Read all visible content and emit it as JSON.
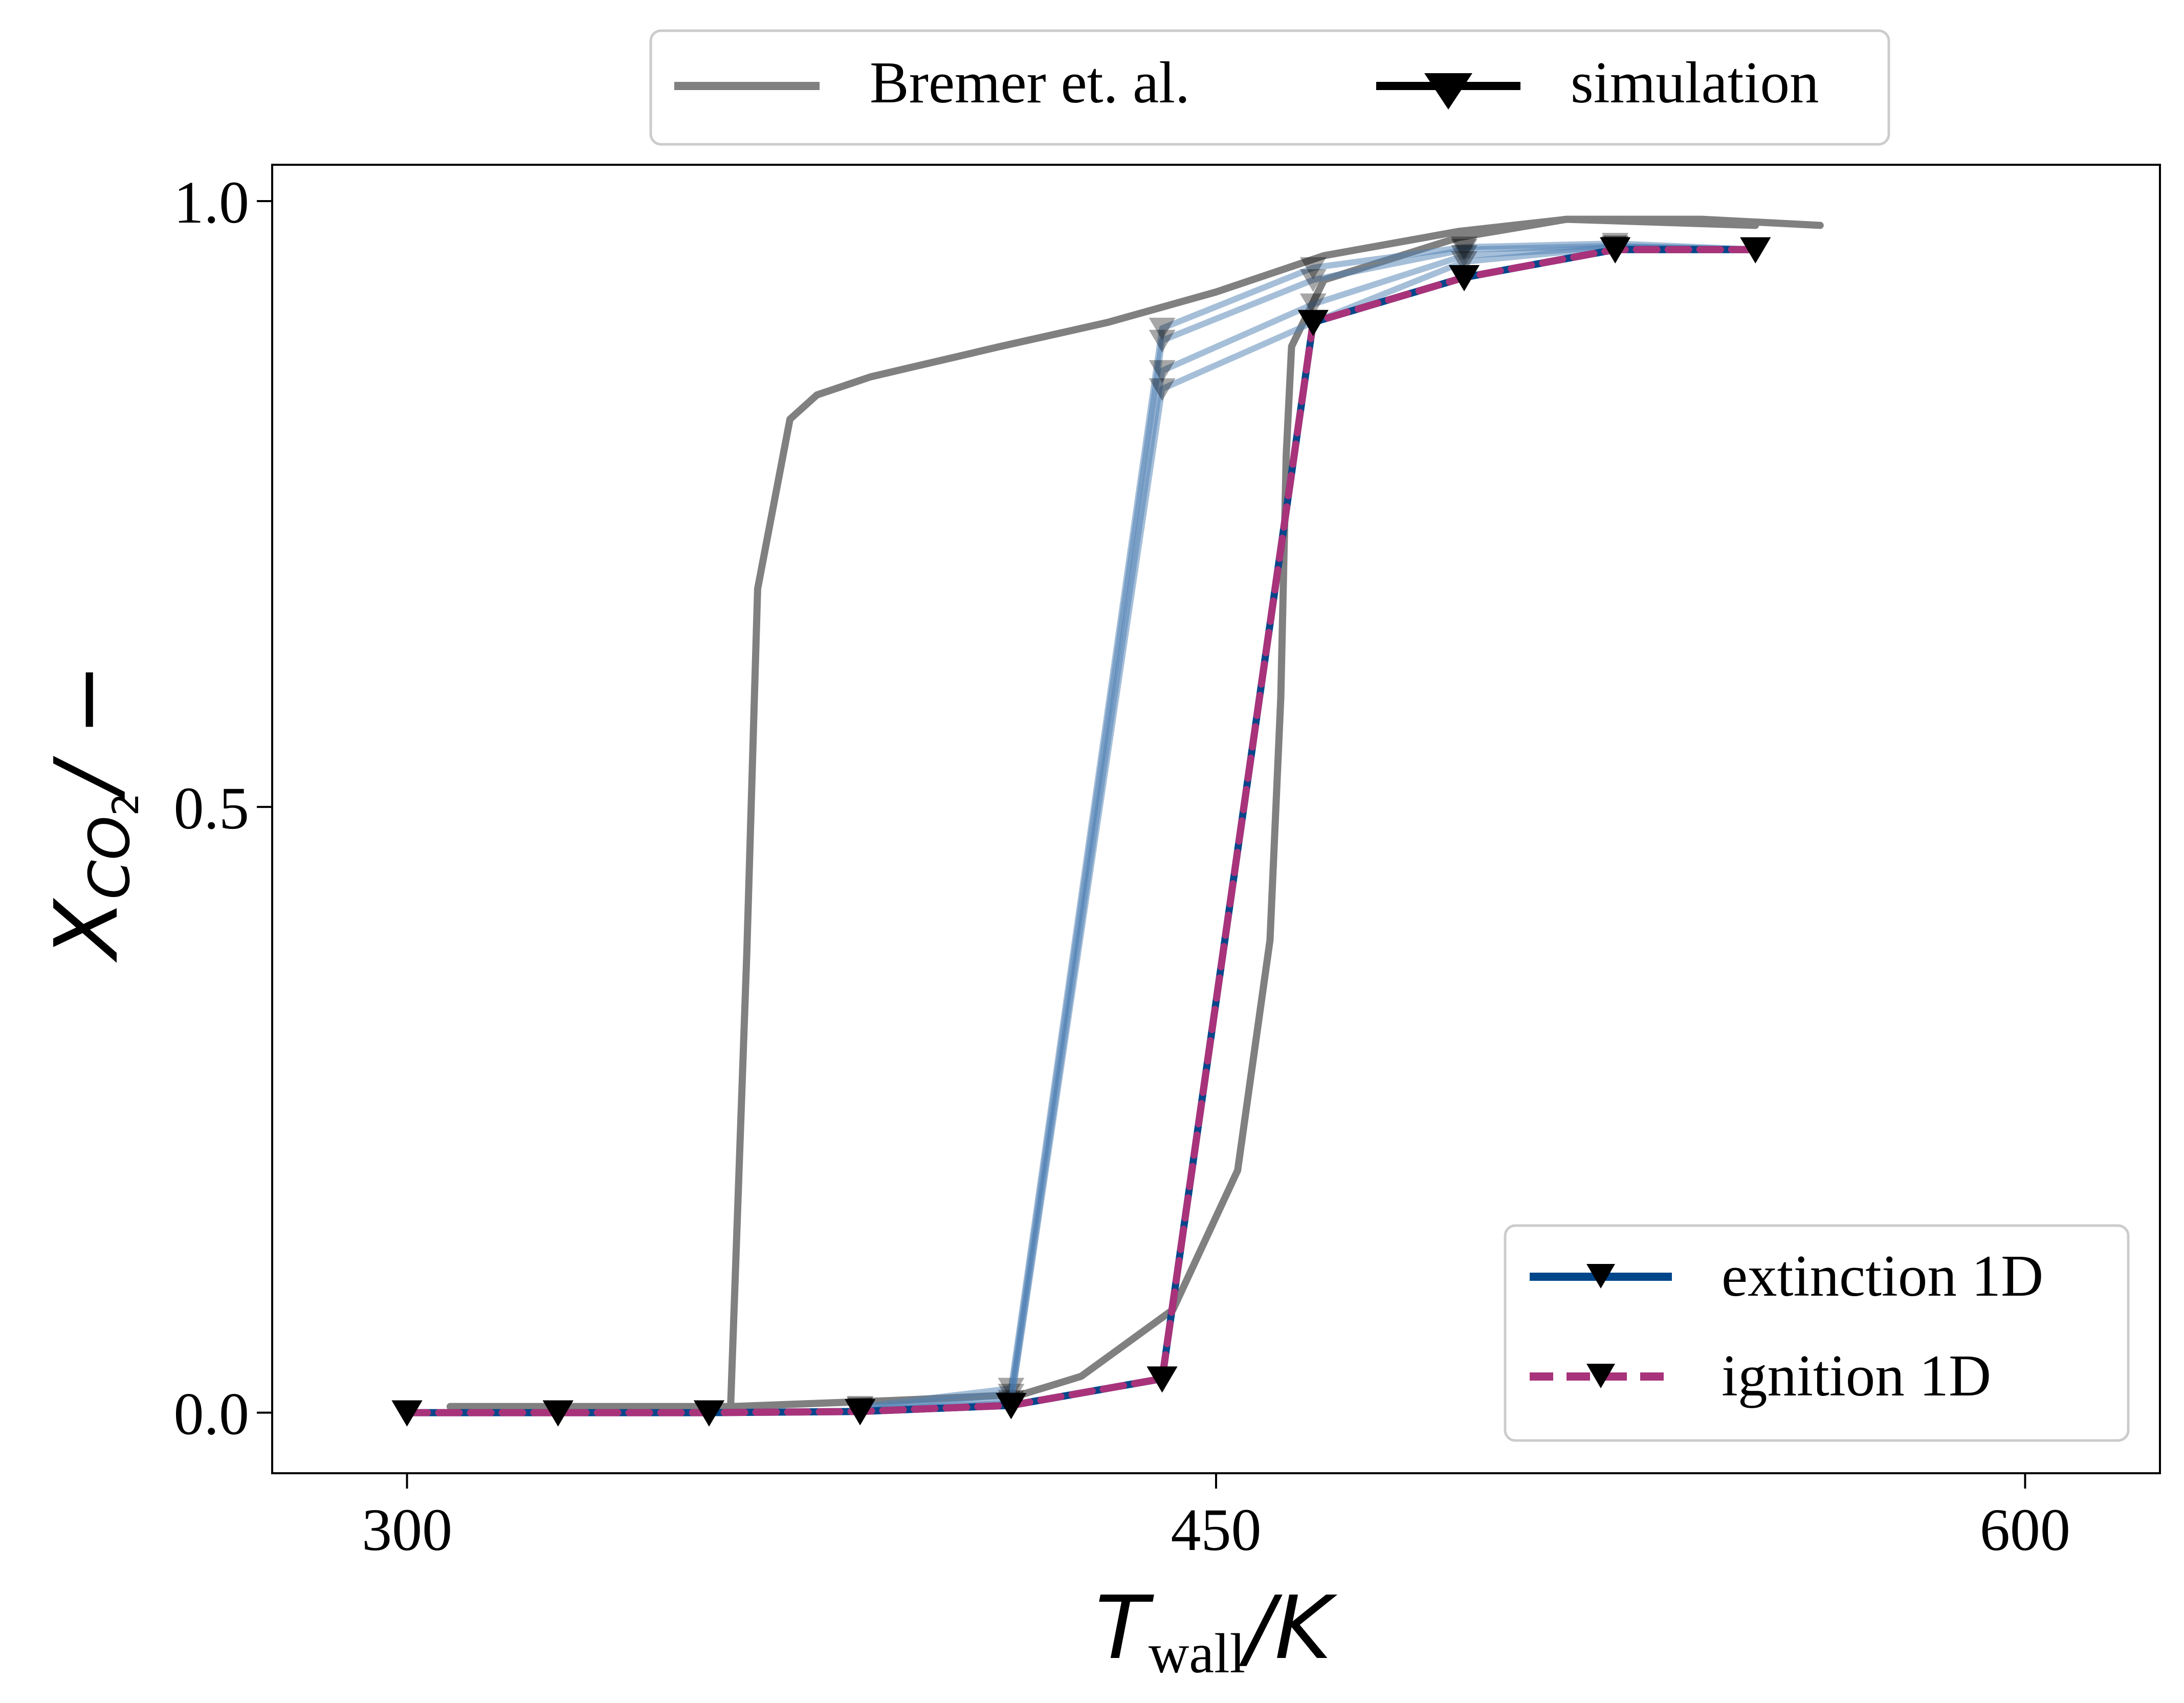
{
  "chart_data": {
    "type": "line",
    "title": "",
    "xlabel": {
      "main": "T",
      "sub": "wall",
      "tail": "/K"
    },
    "ylabel": {
      "main": "X",
      "sub": "CO",
      "subsub": "2",
      "tail": "/ −"
    },
    "xlim": [
      275,
      625
    ],
    "ylim": [
      -0.05,
      1.03
    ],
    "xticks": [
      300,
      450,
      600
    ],
    "xtick_labels": [
      "300",
      "450",
      "600"
    ],
    "yticks": [
      0.0,
      0.5,
      1.0
    ],
    "ytick_labels": [
      "0.0",
      "0.5",
      "1.0"
    ],
    "grid": false,
    "legends": {
      "top": {
        "placement": "above-plot",
        "entries": [
          {
            "label": "Bremer et. al.",
            "color": "#808080",
            "style": "solid",
            "marker": "none"
          },
          {
            "label": "simulation",
            "color": "#000000",
            "style": "solid",
            "marker": "triangle-down"
          }
        ]
      },
      "bottom": {
        "placement": "lower-right",
        "entries": [
          {
            "label": "extinction 1D",
            "color": "#00468b",
            "style": "solid",
            "marker": "triangle-down"
          },
          {
            "label": "ignition 1D",
            "color": "#a8337a",
            "style": "dashed",
            "marker": "triangle-down"
          }
        ]
      }
    },
    "series": [
      {
        "name": "Bremer et. al.",
        "color": "#808080",
        "points": [
          [
            308,
            0.005
          ],
          [
            334,
            0.005
          ],
          [
            360,
            0.005
          ],
          [
            363,
            0.38
          ],
          [
            365,
            0.68
          ],
          [
            371,
            0.82
          ],
          [
            376,
            0.84
          ],
          [
            386,
            0.855
          ],
          [
            410,
            0.88
          ],
          [
            430,
            0.9
          ],
          [
            450,
            0.925
          ],
          [
            470,
            0.955
          ],
          [
            495,
            0.975
          ],
          [
            515,
            0.985
          ],
          [
            540,
            0.985
          ],
          [
            562,
            0.98
          ]
        ]
      },
      {
        "name": "Bremer et. al.",
        "color": "#808080",
        "points": [
          [
            308,
            0.005
          ],
          [
            360,
            0.005
          ],
          [
            390,
            0.01
          ],
          [
            414,
            0.015
          ],
          [
            425,
            0.03
          ],
          [
            442,
            0.085
          ],
          [
            454,
            0.2
          ],
          [
            460,
            0.39
          ],
          [
            462,
            0.59
          ],
          [
            463,
            0.79
          ],
          [
            464,
            0.88
          ],
          [
            470,
            0.935
          ],
          [
            495,
            0.97
          ],
          [
            515,
            0.985
          ],
          [
            550,
            0.98
          ]
        ]
      },
      {
        "name": "extinction 1D",
        "color": "#00468b",
        "points": [
          [
            300,
            0.0
          ],
          [
            328,
            0.0
          ],
          [
            356,
            0.0
          ],
          [
            384,
            0.001
          ],
          [
            412,
            0.006
          ],
          [
            440,
            0.028
          ],
          [
            468,
            0.9
          ],
          [
            496,
            0.937
          ],
          [
            524,
            0.96
          ],
          [
            550,
            0.96
          ]
        ]
      },
      {
        "name": "ignition 1D",
        "color": "#a8337a",
        "points": [
          [
            300,
            0.0
          ],
          [
            328,
            0.0
          ],
          [
            356,
            0.0
          ],
          [
            384,
            0.001
          ],
          [
            412,
            0.006
          ],
          [
            440,
            0.028
          ],
          [
            468,
            0.9
          ],
          [
            496,
            0.937
          ],
          [
            524,
            0.96
          ],
          [
            550,
            0.96
          ]
        ]
      },
      {
        "name": "",
        "color": "#4d7fb3",
        "points": [
          [
            384,
            0.005
          ],
          [
            412,
            0.02
          ],
          [
            440,
            0.895
          ],
          [
            468,
            0.945
          ],
          [
            496,
            0.962
          ],
          [
            524,
            0.965
          ],
          [
            550,
            0.96
          ]
        ]
      },
      {
        "name": "",
        "color": "#4d7fb3",
        "points": [
          [
            384,
            0.004
          ],
          [
            412,
            0.015
          ],
          [
            440,
            0.885
          ],
          [
            468,
            0.935
          ],
          [
            496,
            0.96
          ],
          [
            524,
            0.963
          ],
          [
            550,
            0.96
          ]
        ]
      },
      {
        "name": "",
        "color": "#4d7fb3",
        "points": [
          [
            384,
            0.003
          ],
          [
            412,
            0.01
          ],
          [
            440,
            0.86
          ],
          [
            468,
            0.915
          ],
          [
            496,
            0.955
          ],
          [
            524,
            0.962
          ],
          [
            550,
            0.96
          ]
        ]
      },
      {
        "name": "",
        "color": "#4d7fb3",
        "points": [
          [
            384,
            0.002
          ],
          [
            412,
            0.008
          ],
          [
            440,
            0.845
          ],
          [
            468,
            0.9
          ],
          [
            496,
            0.95
          ],
          [
            524,
            0.962
          ],
          [
            550,
            0.96
          ]
        ]
      }
    ]
  }
}
